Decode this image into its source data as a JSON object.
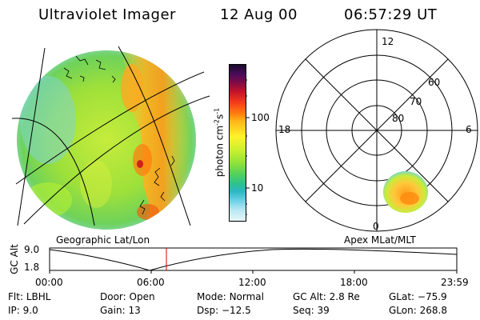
{
  "header": {
    "title": "Ultraviolet Imager",
    "date": "12 Aug 00",
    "time": "06:57:29 UT"
  },
  "colorbar": {
    "label": "photon cm",
    "label_sup1": "-2",
    "label_mid": "s",
    "label_sup2": "-1",
    "tick_100": "100",
    "tick_10": "10"
  },
  "left_panel_label": "Geographic Lat/Lon",
  "right_panel_label": "Apex MLat/MLT",
  "polar": {
    "mlt_12": "12",
    "mlt_18": "18",
    "mlt_6": "6",
    "mlt_0": "0",
    "lat_60": "60",
    "lat_70": "70",
    "lat_80": "80"
  },
  "altitude_plot": {
    "ylabel": "GC Alt",
    "ytick_top": "9.0",
    "ytick_bottom": "1.8",
    "xticks": [
      "00:00",
      "06:00",
      "12:00",
      "18:00",
      "23:59"
    ]
  },
  "info": {
    "flt_label": "Flt:",
    "flt_value": "LBHL",
    "ip_label": "IP:",
    "ip_value": "9.0",
    "door_label": "Door:",
    "door_value": "Open",
    "gain_label": "Gain:",
    "gain_value": "13",
    "mode_label": "Mode:",
    "mode_value": "Normal",
    "dsp_label": "Dsp:",
    "dsp_value": "−12.5",
    "gcalt_label": "GC Alt:",
    "gcalt_value": "2.8 Re",
    "seq_label": "Seq:",
    "seq_value": "39",
    "glat_label": "GLat:",
    "glat_value": "−75.9",
    "glon_label": "GLon:",
    "glon_value": "268.8"
  },
  "colors": {
    "marker": "#d00000",
    "disk_main": "#9ee03a",
    "disk_edge": "#b8e8f0",
    "oval": "#ffb020"
  }
}
